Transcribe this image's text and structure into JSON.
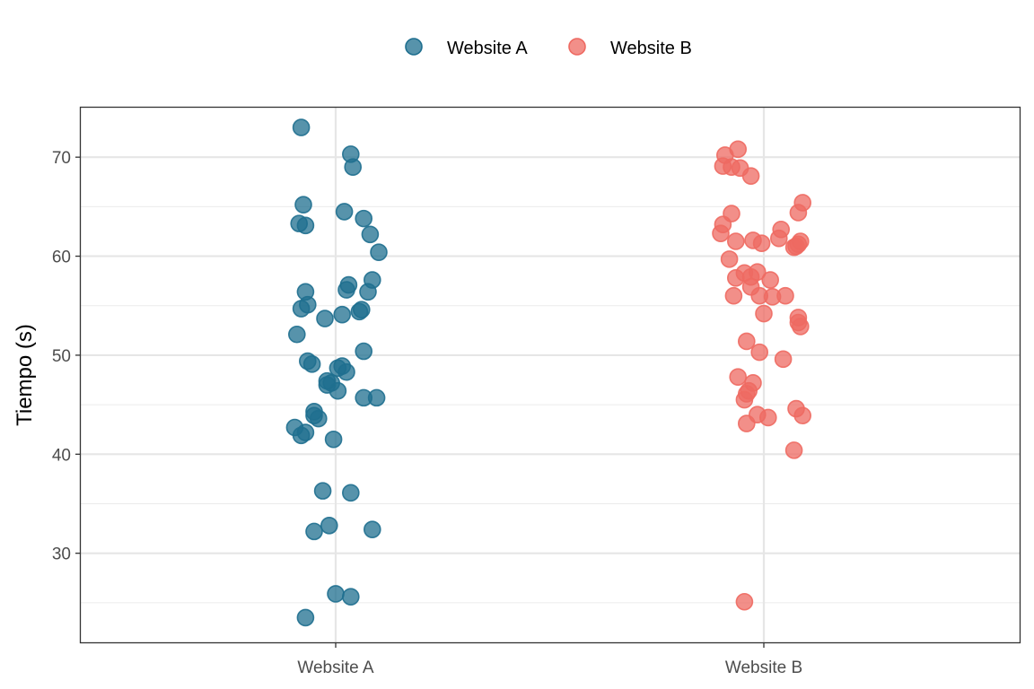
{
  "chart_data": {
    "type": "scatter",
    "title": "",
    "xlabel": "",
    "ylabel": "Tiempo (s)",
    "categories": [
      "Website A",
      "Website B"
    ],
    "ylim": [
      21,
      75
    ],
    "y_ticks": [
      30,
      40,
      50,
      60,
      70
    ],
    "grid": true,
    "legend_position": "top",
    "series": [
      {
        "name": "Website A",
        "color": "#1f6f8f",
        "points": [
          {
            "x": -0.16,
            "y": 73.0
          },
          {
            "x": 0.07,
            "y": 70.3
          },
          {
            "x": 0.08,
            "y": 69.0
          },
          {
            "x": -0.15,
            "y": 65.2
          },
          {
            "x": 0.04,
            "y": 64.5
          },
          {
            "x": 0.13,
            "y": 63.8
          },
          {
            "x": -0.17,
            "y": 63.3
          },
          {
            "x": -0.14,
            "y": 63.1
          },
          {
            "x": 0.16,
            "y": 62.2
          },
          {
            "x": 0.2,
            "y": 60.4
          },
          {
            "x": 0.17,
            "y": 57.6
          },
          {
            "x": 0.06,
            "y": 57.1
          },
          {
            "x": 0.05,
            "y": 56.6
          },
          {
            "x": 0.15,
            "y": 56.4
          },
          {
            "x": -0.14,
            "y": 56.4
          },
          {
            "x": -0.13,
            "y": 55.1
          },
          {
            "x": -0.16,
            "y": 54.7
          },
          {
            "x": 0.12,
            "y": 54.6
          },
          {
            "x": 0.11,
            "y": 54.4
          },
          {
            "x": 0.03,
            "y": 54.1
          },
          {
            "x": -0.05,
            "y": 53.7
          },
          {
            "x": -0.18,
            "y": 52.1
          },
          {
            "x": 0.13,
            "y": 50.4
          },
          {
            "x": -0.13,
            "y": 49.4
          },
          {
            "x": -0.11,
            "y": 49.1
          },
          {
            "x": 0.03,
            "y": 48.9
          },
          {
            "x": 0.01,
            "y": 48.7
          },
          {
            "x": 0.05,
            "y": 48.3
          },
          {
            "x": -0.04,
            "y": 47.4
          },
          {
            "x": -0.02,
            "y": 47.2
          },
          {
            "x": -0.04,
            "y": 47.0
          },
          {
            "x": 0.01,
            "y": 46.4
          },
          {
            "x": 0.13,
            "y": 45.7
          },
          {
            "x": 0.19,
            "y": 45.7
          },
          {
            "x": -0.1,
            "y": 44.3
          },
          {
            "x": -0.1,
            "y": 43.9
          },
          {
            "x": -0.08,
            "y": 43.6
          },
          {
            "x": -0.19,
            "y": 42.7
          },
          {
            "x": -0.14,
            "y": 42.2
          },
          {
            "x": -0.16,
            "y": 41.9
          },
          {
            "x": -0.01,
            "y": 41.5
          },
          {
            "x": -0.06,
            "y": 36.3
          },
          {
            "x": 0.07,
            "y": 36.1
          },
          {
            "x": -0.03,
            "y": 32.8
          },
          {
            "x": 0.17,
            "y": 32.4
          },
          {
            "x": -0.1,
            "y": 32.2
          },
          {
            "x": 0.0,
            "y": 25.9
          },
          {
            "x": 0.07,
            "y": 25.6
          },
          {
            "x": -0.14,
            "y": 23.5
          }
        ]
      },
      {
        "name": "Website B",
        "color": "#ee6a62",
        "points": [
          {
            "x": -0.12,
            "y": 70.8
          },
          {
            "x": -0.18,
            "y": 70.2
          },
          {
            "x": -0.19,
            "y": 69.1
          },
          {
            "x": -0.15,
            "y": 69.0
          },
          {
            "x": -0.11,
            "y": 68.9
          },
          {
            "x": -0.06,
            "y": 68.1
          },
          {
            "x": 0.18,
            "y": 65.4
          },
          {
            "x": 0.16,
            "y": 64.4
          },
          {
            "x": -0.15,
            "y": 64.3
          },
          {
            "x": -0.19,
            "y": 63.2
          },
          {
            "x": 0.08,
            "y": 62.7
          },
          {
            "x": -0.2,
            "y": 62.3
          },
          {
            "x": 0.07,
            "y": 61.8
          },
          {
            "x": -0.05,
            "y": 61.6
          },
          {
            "x": -0.13,
            "y": 61.5
          },
          {
            "x": 0.17,
            "y": 61.5
          },
          {
            "x": 0.16,
            "y": 61.2
          },
          {
            "x": -0.01,
            "y": 61.3
          },
          {
            "x": 0.15,
            "y": 61.0
          },
          {
            "x": 0.14,
            "y": 60.9
          },
          {
            "x": -0.16,
            "y": 59.7
          },
          {
            "x": -0.03,
            "y": 58.4
          },
          {
            "x": -0.09,
            "y": 58.3
          },
          {
            "x": -0.06,
            "y": 57.9
          },
          {
            "x": -0.13,
            "y": 57.8
          },
          {
            "x": 0.03,
            "y": 57.6
          },
          {
            "x": -0.06,
            "y": 56.9
          },
          {
            "x": -0.14,
            "y": 56.0
          },
          {
            "x": -0.02,
            "y": 56.0
          },
          {
            "x": 0.04,
            "y": 55.9
          },
          {
            "x": 0.1,
            "y": 56.0
          },
          {
            "x": 0.0,
            "y": 54.2
          },
          {
            "x": 0.16,
            "y": 53.8
          },
          {
            "x": 0.16,
            "y": 53.3
          },
          {
            "x": 0.17,
            "y": 52.9
          },
          {
            "x": -0.08,
            "y": 51.4
          },
          {
            "x": -0.02,
            "y": 50.3
          },
          {
            "x": 0.09,
            "y": 49.6
          },
          {
            "x": -0.12,
            "y": 47.8
          },
          {
            "x": -0.05,
            "y": 47.2
          },
          {
            "x": -0.07,
            "y": 46.4
          },
          {
            "x": -0.08,
            "y": 46.1
          },
          {
            "x": -0.09,
            "y": 45.5
          },
          {
            "x": 0.15,
            "y": 44.6
          },
          {
            "x": -0.03,
            "y": 44.0
          },
          {
            "x": 0.18,
            "y": 43.9
          },
          {
            "x": 0.02,
            "y": 43.7
          },
          {
            "x": -0.08,
            "y": 43.1
          },
          {
            "x": 0.14,
            "y": 40.4
          },
          {
            "x": -0.09,
            "y": 25.1
          }
        ]
      }
    ]
  }
}
